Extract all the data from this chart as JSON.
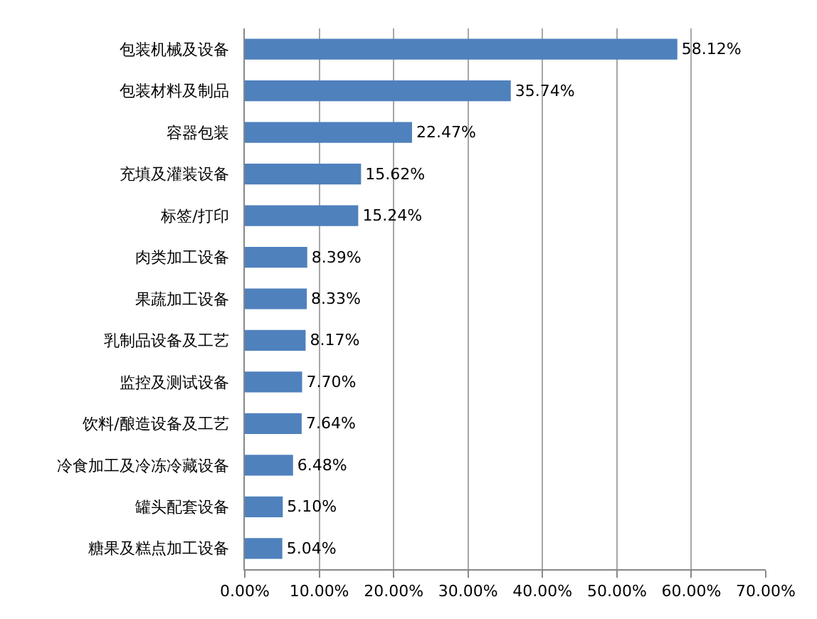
{
  "chart_data": {
    "type": "bar",
    "orientation": "horizontal",
    "categories": [
      "包装机械及设备",
      "包装材料及制品",
      "容器包装",
      "充填及灌装设备",
      "标签/打印",
      "肉类加工设备",
      "果蔬加工设备",
      "乳制品设备及工艺",
      "监控及测试设备",
      "饮料/酿造设备及工艺",
      "冷食加工及冷冻冷藏设备",
      "罐头配套设备",
      "糖果及糕点加工设备"
    ],
    "values": [
      58.12,
      35.74,
      22.47,
      15.62,
      15.24,
      8.39,
      8.33,
      8.17,
      7.7,
      7.64,
      6.48,
      5.1,
      5.04
    ],
    "value_labels": [
      "58.12%",
      "35.74%",
      "22.47%",
      "15.62%",
      "15.24%",
      "8.39%",
      "8.33%",
      "8.17%",
      "7.70%",
      "7.64%",
      "6.48%",
      "5.10%",
      "5.04%"
    ],
    "color": "#4f81bd",
    "xlim": [
      0,
      70
    ],
    "xticks": [
      {
        "value": 0,
        "label": "0.00%"
      },
      {
        "value": 10,
        "label": "10.00%"
      },
      {
        "value": 20,
        "label": "20.00%"
      },
      {
        "value": 30,
        "label": "30.00%"
      },
      {
        "value": 40,
        "label": "40.00%"
      },
      {
        "value": 50,
        "label": "50.00%"
      },
      {
        "value": 60,
        "label": "60.00%"
      },
      {
        "value": 70,
        "label": "70.00%"
      }
    ],
    "grid": "x",
    "legend": false
  }
}
